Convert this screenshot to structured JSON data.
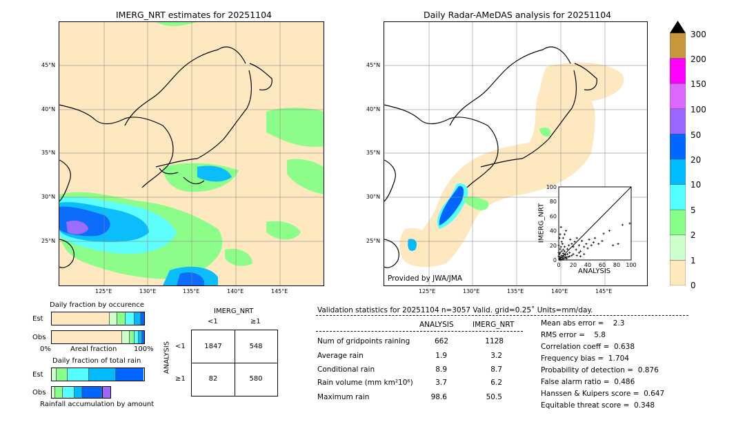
{
  "left_map": {
    "title": "IMERG_NRT estimates for 20251104",
    "lat_labels": [
      "45°N",
      "40°N",
      "35°N",
      "30°N",
      "25°N"
    ],
    "lon_labels": [
      "125°E",
      "130°E",
      "135°E",
      "140°E",
      "145°E"
    ]
  },
  "right_map": {
    "title": "Daily Radar-AMeDAS analysis for 20251104",
    "lat_labels": [
      "45°N",
      "40°N",
      "35°N",
      "30°N",
      "25°N"
    ],
    "lon_labels": [
      "125°E",
      "130°E",
      "135°E",
      "140°E",
      "145°E"
    ],
    "credit": "Provided by JWA/JMA"
  },
  "colorbar": {
    "ticks": [
      "300",
      "200",
      "150",
      "100",
      "50",
      "20",
      "10",
      "5",
      "2",
      "1",
      "0"
    ],
    "colors": [
      "#c8963c",
      "#ff00ff",
      "#dd66ff",
      "#9966ff",
      "#0066ff",
      "#00bbff",
      "#55ffff",
      "#88ff88",
      "#ccffcc",
      "#ffe8bb"
    ]
  },
  "occurrence": {
    "title": "Daily fraction by occurence",
    "est_label": "Est",
    "obs_label": "Obs",
    "axis_left": "0%",
    "axis_mid": "Areal fraction",
    "axis_right": "100%"
  },
  "total_rain": {
    "title": "Daily fraction of total rain",
    "est_label": "Est",
    "obs_label": "Obs",
    "axis_mid": "Rainfall accumulation by amount"
  },
  "contingency": {
    "top_title": "IMERG_NRT",
    "col_lt": "<1",
    "col_ge": "≥1",
    "side_title": "ANALYSIS",
    "row_lt": "<1",
    "row_ge": "≥1",
    "cells": [
      "1847",
      "548",
      "82",
      "580"
    ]
  },
  "validation": {
    "header": "Validation statistics for 20251104  n=3057 Valid. grid=0.25˚ Units=mm/day.",
    "col_analysis": "ANALYSIS",
    "col_imerg": "IMERG_NRT",
    "rows": [
      {
        "label": "Num of gridpoints raining",
        "analysis": "662",
        "imerg": "1128"
      },
      {
        "label": "Average rain",
        "analysis": "1.9",
        "imerg": "3.2"
      },
      {
        "label": "Conditional rain",
        "analysis": "8.9",
        "imerg": "8.7"
      },
      {
        "label": "Rain volume (mm km²10⁶)",
        "analysis": "3.7",
        "imerg": "6.2"
      },
      {
        "label": "Maximum rain",
        "analysis": "98.6",
        "imerg": "50.5"
      }
    ],
    "scores": [
      "Mean abs error =    2.3",
      "RMS error =    5.8",
      "Correlation coeff =  0.638",
      "Frequency bias =  1.704",
      "Probability of detection =  0.876",
      "False alarm ratio =  0.486",
      "Hanssen & Kuipers score =  0.647",
      "Equitable threat score =  0.348"
    ]
  },
  "chart_data": {
    "type": "scatter",
    "xlabel": "ANALYSIS",
    "ylabel": "IMERG_NRT",
    "xlim": [
      0,
      100
    ],
    "ylim": [
      0,
      100
    ],
    "ticks": [
      "0",
      "20",
      "40",
      "60",
      "80",
      "100"
    ],
    "points": [
      [
        1,
        2
      ],
      [
        2,
        4
      ],
      [
        3,
        1
      ],
      [
        4,
        6
      ],
      [
        5,
        3
      ],
      [
        6,
        9
      ],
      [
        7,
        5
      ],
      [
        8,
        12
      ],
      [
        9,
        7
      ],
      [
        10,
        4
      ],
      [
        2,
        15
      ],
      [
        3,
        18
      ],
      [
        5,
        22
      ],
      [
        4,
        25
      ],
      [
        6,
        30
      ],
      [
        8,
        35
      ],
      [
        10,
        40
      ],
      [
        3,
        45
      ],
      [
        12,
        15
      ],
      [
        14,
        20
      ],
      [
        15,
        10
      ],
      [
        16,
        28
      ],
      [
        18,
        22
      ],
      [
        20,
        18
      ],
      [
        22,
        25
      ],
      [
        24,
        14
      ],
      [
        25,
        30
      ],
      [
        28,
        20
      ],
      [
        30,
        12
      ],
      [
        32,
        26
      ],
      [
        35,
        18
      ],
      [
        38,
        22
      ],
      [
        40,
        16
      ],
      [
        42,
        28
      ],
      [
        45,
        20
      ],
      [
        48,
        24
      ],
      [
        50,
        30
      ],
      [
        55,
        22
      ],
      [
        60,
        26
      ],
      [
        62,
        36
      ],
      [
        70,
        40
      ],
      [
        75,
        20
      ],
      [
        82,
        22
      ],
      [
        88,
        48
      ],
      [
        98,
        50
      ],
      [
        1,
        8
      ],
      [
        2,
        10
      ],
      [
        4,
        12
      ],
      [
        6,
        14
      ],
      [
        8,
        18
      ],
      [
        12,
        8
      ],
      [
        15,
        5
      ],
      [
        18,
        6
      ],
      [
        20,
        8
      ],
      [
        25,
        6
      ],
      [
        28,
        10
      ],
      [
        30,
        5
      ],
      [
        35,
        8
      ],
      [
        1,
        0
      ],
      [
        3,
        0
      ],
      [
        5,
        1
      ],
      [
        7,
        2
      ],
      [
        9,
        3
      ],
      [
        11,
        2
      ],
      [
        13,
        4
      ],
      [
        0,
        5
      ],
      [
        0,
        10
      ],
      [
        0,
        20
      ],
      [
        1,
        30
      ],
      [
        2,
        35
      ]
    ]
  }
}
